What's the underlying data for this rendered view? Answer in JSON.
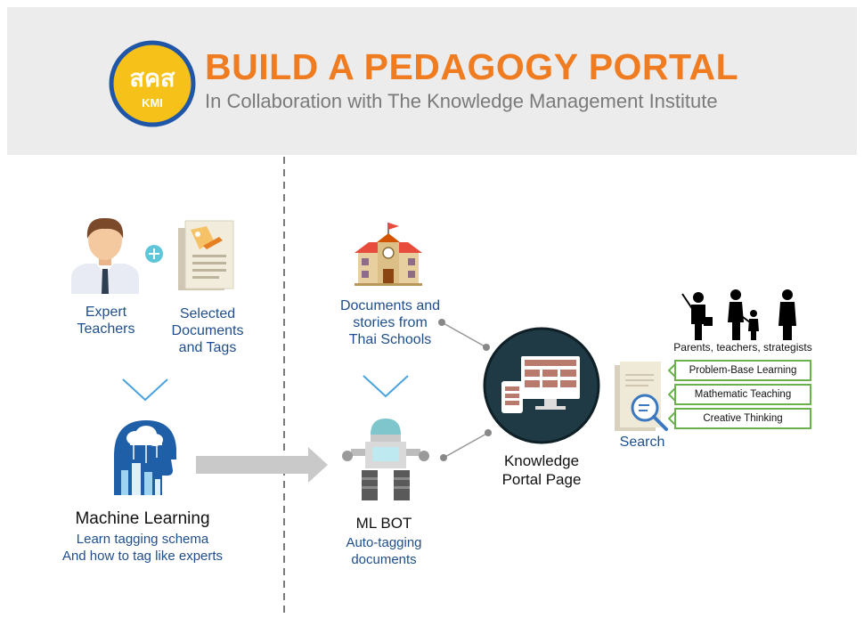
{
  "header": {
    "logo_text_thai": "สคส",
    "logo_text_latin": "KMI",
    "title": "BUILD A PEDAGOGY PORTAL",
    "subtitle": "In Collaboration with The Knowledge Management Institute"
  },
  "left": {
    "expert_label_1": "Expert",
    "expert_label_2": "Teachers",
    "docs_label_1": "Selected",
    "docs_label_2": "Documents",
    "docs_label_3": "and Tags",
    "ml_title": "Machine Learning",
    "ml_desc_1": "Learn tagging schema",
    "ml_desc_2": "And how to tag like experts"
  },
  "middle": {
    "school_label_1": "Documents and",
    "school_label_2": "stories from",
    "school_label_3": "Thai Schools",
    "bot_title": "ML BOT",
    "bot_desc_1": "Auto-tagging",
    "bot_desc_2": "documents"
  },
  "right": {
    "portal_label_1": "Knowledge",
    "portal_label_2": "Portal Page",
    "search_label": "Search",
    "audience_label": "Parents, teachers, strategists",
    "tags": [
      "Problem-Base Learning",
      "Mathematic Teaching",
      "Creative Thinking"
    ]
  },
  "colors": {
    "title_orange": "#f07c22",
    "label_blue": "#1f4e8c",
    "tag_green": "#6ab04c",
    "portal_dark": "#1f3a44",
    "chevron_blue": "#4aa3df"
  }
}
